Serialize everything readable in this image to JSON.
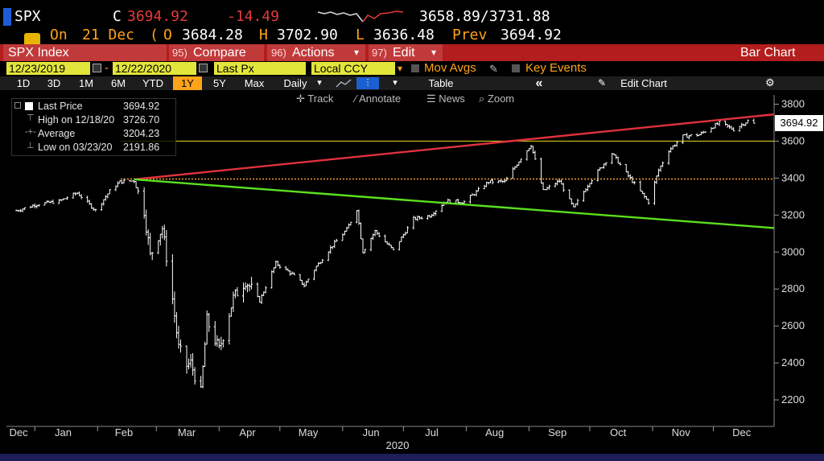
{
  "quote": {
    "ticker": "SPX",
    "c_label": "C",
    "last": "3694.92",
    "change": "-14.49",
    "range": "3658.89/3731.88",
    "on_label": "On",
    "date": "21 Dec",
    "sep": "(",
    "o_label": "O",
    "open": "3684.28",
    "h_label": "H",
    "high": "3702.90",
    "l_label": "L",
    "low": "3636.48",
    "prev_label": "Prev",
    "prev": "3694.92"
  },
  "redbar": {
    "security": "SPX Index",
    "compare_num": "95)",
    "compare": "Compare",
    "actions_num": "96)",
    "actions": "Actions",
    "actions_arrow": "▾",
    "edit_num": "97)",
    "edit": "Edit",
    "edit_arrow": "▾",
    "title": "Bar Chart"
  },
  "datebar": {
    "start": "12/23/2019",
    "dash": "-",
    "end": "12/22/2020",
    "field": "Last Px",
    "ccy": "Local CCY",
    "ccy_arrow": "▾",
    "movavgs": "Mov Avgs",
    "keyevents": "Key Events"
  },
  "rangebar": {
    "ranges": [
      "1D",
      "3D",
      "1M",
      "6M",
      "YTD",
      "1Y",
      "5Y",
      "Max"
    ],
    "selected": "1Y",
    "period": "Daily",
    "period_arrow": "▾",
    "small_arrow": "▾",
    "table": "Table",
    "collapse": "«",
    "edit_chart": "Edit Chart"
  },
  "tools": {
    "track": "Track",
    "annotate": "Annotate",
    "news": "News",
    "zoom": "Zoom"
  },
  "legend": {
    "items": [
      {
        "label": "Last Price",
        "value": "3694.92"
      },
      {
        "label": "High on 12/18/20",
        "value": "3726.70"
      },
      {
        "label": "Average",
        "value": "3204.23"
      },
      {
        "label": "Low on 03/23/20",
        "value": "2191.86"
      }
    ]
  },
  "last_price_box": "3694.92",
  "colors": {
    "background": "#000000",
    "price": "#ffffff",
    "red_line": "#e0313f",
    "green_line": "#5be01f",
    "high_line": "#e8e01a",
    "avg_line": "#f0a030",
    "red": "#e33b3b",
    "orange": "#ffa319"
  },
  "chart_data": {
    "type": "bar",
    "ylim": [
      2100,
      3850
    ],
    "yticks": [
      2200,
      2400,
      2600,
      2800,
      3000,
      3200,
      3400,
      3600,
      3800
    ],
    "months": [
      "Dec",
      "Jan",
      "Feb",
      "Mar",
      "Apr",
      "May",
      "Jun",
      "Jul",
      "Aug",
      "Sep",
      "Oct",
      "Nov",
      "Dec"
    ],
    "year_label": "2020",
    "reference_lines": {
      "high": 3600,
      "average": 3395
    },
    "trendlines": {
      "upper": {
        "from": [
          "2020-02-19",
          3393
        ],
        "to": [
          "2020-12-31",
          3745
        ]
      },
      "lower": {
        "from": [
          "2020-02-19",
          3393
        ],
        "to": [
          "2020-12-31",
          3130
        ]
      }
    },
    "series": [
      {
        "dates": [
          "2019-12-23",
          "2020-01-02",
          "2020-01-13",
          "2020-01-22",
          "2020-01-31",
          "2020-02-07",
          "2020-02-12",
          "2020-02-19",
          "2020-02-24",
          "2020-02-27",
          "2020-03-02",
          "2020-03-04",
          "2020-03-09",
          "2020-03-12",
          "2020-03-16",
          "2020-03-18",
          "2020-03-23",
          "2020-03-26",
          "2020-04-01",
          "2020-04-08",
          "2020-04-14",
          "2020-04-21",
          "2020-04-29",
          "2020-05-07",
          "2020-05-13",
          "2020-05-19",
          "2020-05-27",
          "2020-06-03",
          "2020-06-08",
          "2020-06-11",
          "2020-06-17",
          "2020-06-26",
          "2020-07-06",
          "2020-07-14",
          "2020-07-22",
          "2020-07-31",
          "2020-08-12",
          "2020-08-20",
          "2020-08-28",
          "2020-09-02",
          "2020-09-08",
          "2020-09-16",
          "2020-09-23",
          "2020-10-01",
          "2020-10-12",
          "2020-10-19",
          "2020-10-30",
          "2020-11-04",
          "2020-11-09",
          "2020-11-16",
          "2020-11-24",
          "2020-12-04",
          "2020-12-11",
          "2020-12-18",
          "2020-12-21"
        ],
        "values": [
          3224,
          3258,
          3275,
          3320,
          3225,
          3330,
          3380,
          3386,
          3225,
          2978,
          3090,
          3130,
          2746,
          2480,
          2386,
          2398,
          2237,
          2630,
          2470,
          2750,
          2846,
          2736,
          2939,
          2881,
          2820,
          2922,
          3036,
          3122,
          3232,
          3002,
          3113,
          3009,
          3179,
          3197,
          3276,
          3271,
          3380,
          3381,
          3508,
          3580,
          3331,
          3385,
          3237,
          3380,
          3534,
          3426,
          3270,
          3443,
          3550,
          3626,
          3635,
          3699,
          3663,
          3709,
          3694
        ]
      }
    ]
  }
}
